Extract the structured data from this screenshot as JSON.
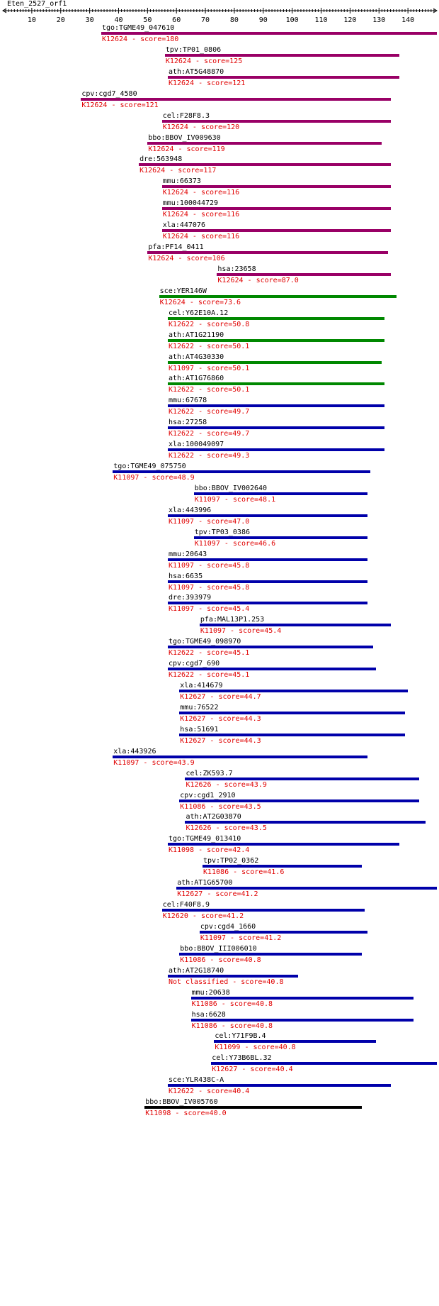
{
  "title": "Eten_2527_orf1",
  "axis": {
    "min": 0,
    "max": 150,
    "ticks": [
      10,
      20,
      30,
      40,
      50,
      60,
      70,
      80,
      90,
      100,
      110,
      120,
      130,
      140
    ]
  },
  "colors": {
    "purple": "#990066",
    "green": "#008800",
    "blue": "#0000aa",
    "black": "#000000",
    "red": "#e00000"
  },
  "hits": [
    {
      "gene": "tgo:TGME49_047610",
      "ko": "K12624",
      "score": "180",
      "start": 34,
      "end": 150,
      "color": "purple"
    },
    {
      "gene": "tpv:TP01_0806",
      "ko": "K12624",
      "score": "125",
      "start": 56,
      "end": 137,
      "color": "purple"
    },
    {
      "gene": "ath:AT5G48870",
      "ko": "K12624",
      "score": "121",
      "start": 57,
      "end": 137,
      "color": "purple"
    },
    {
      "gene": "cpv:cgd7_4580",
      "ko": "K12624",
      "score": "121",
      "start": 27,
      "end": 134,
      "color": "purple"
    },
    {
      "gene": "cel:F28F8.3",
      "ko": "K12624",
      "score": "120",
      "start": 55,
      "end": 134,
      "color": "purple"
    },
    {
      "gene": "bbo:BBOV_IV009630",
      "ko": "K12624",
      "score": "119",
      "start": 50,
      "end": 131,
      "color": "purple"
    },
    {
      "gene": "dre:563948",
      "ko": "K12624",
      "score": "117",
      "start": 47,
      "end": 134,
      "color": "purple"
    },
    {
      "gene": "mmu:66373",
      "ko": "K12624",
      "score": "116",
      "start": 55,
      "end": 134,
      "color": "purple"
    },
    {
      "gene": "mmu:100044729",
      "ko": "K12624",
      "score": "116",
      "start": 55,
      "end": 134,
      "color": "purple"
    },
    {
      "gene": "xla:447076",
      "ko": "K12624",
      "score": "116",
      "start": 55,
      "end": 134,
      "color": "purple"
    },
    {
      "gene": "pfa:PF14_0411",
      "ko": "K12624",
      "score": "106",
      "start": 50,
      "end": 133,
      "color": "purple"
    },
    {
      "gene": "hsa:23658",
      "ko": "K12624",
      "score": "87.0",
      "start": 74,
      "end": 134,
      "color": "purple"
    },
    {
      "gene": "sce:YER146W",
      "ko": "K12624",
      "score": "73.6",
      "start": 54,
      "end": 136,
      "color": "green"
    },
    {
      "gene": "cel:Y62E10A.12",
      "ko": "K12622",
      "score": "50.8",
      "start": 57,
      "end": 132,
      "color": "green"
    },
    {
      "gene": "ath:AT1G21190",
      "ko": "K12622",
      "score": "50.1",
      "start": 57,
      "end": 132,
      "color": "green"
    },
    {
      "gene": "ath:AT4G30330",
      "ko": "K11097",
      "score": "50.1",
      "start": 57,
      "end": 131,
      "color": "green"
    },
    {
      "gene": "ath:AT1G76860",
      "ko": "K12622",
      "score": "50.1",
      "start": 57,
      "end": 132,
      "color": "green"
    },
    {
      "gene": "mmu:67678",
      "ko": "K12622",
      "score": "49.7",
      "start": 57,
      "end": 132,
      "color": "blue"
    },
    {
      "gene": "hsa:27258",
      "ko": "K12622",
      "score": "49.7",
      "start": 57,
      "end": 132,
      "color": "blue"
    },
    {
      "gene": "xla:100049097",
      "ko": "K12622",
      "score": "49.3",
      "start": 57,
      "end": 132,
      "color": "blue"
    },
    {
      "gene": "tgo:TGME49_075750",
      "ko": "K11097",
      "score": "48.9",
      "start": 38,
      "end": 127,
      "color": "blue"
    },
    {
      "gene": "bbo:BBOV_IV002640",
      "ko": "K11097",
      "score": "48.1",
      "start": 66,
      "end": 126,
      "color": "blue"
    },
    {
      "gene": "xla:443996",
      "ko": "K11097",
      "score": "47.0",
      "start": 57,
      "end": 126,
      "color": "blue"
    },
    {
      "gene": "tpv:TP03_0386",
      "ko": "K11097",
      "score": "46.6",
      "start": 66,
      "end": 126,
      "color": "blue"
    },
    {
      "gene": "mmu:20643",
      "ko": "K11097",
      "score": "45.8",
      "start": 57,
      "end": 126,
      "color": "blue"
    },
    {
      "gene": "hsa:6635",
      "ko": "K11097",
      "score": "45.8",
      "start": 57,
      "end": 126,
      "color": "blue"
    },
    {
      "gene": "dre:393979",
      "ko": "K11097",
      "score": "45.4",
      "start": 57,
      "end": 126,
      "color": "blue"
    },
    {
      "gene": "pfa:MAL13P1.253",
      "ko": "K11097",
      "score": "45.4",
      "start": 68,
      "end": 134,
      "color": "blue"
    },
    {
      "gene": "tgo:TGME49_098970",
      "ko": "K12622",
      "score": "45.1",
      "start": 57,
      "end": 128,
      "color": "blue"
    },
    {
      "gene": "cpv:cgd7_690",
      "ko": "K12622",
      "score": "45.1",
      "start": 57,
      "end": 129,
      "color": "blue"
    },
    {
      "gene": "xla:414679",
      "ko": "K12627",
      "score": "44.7",
      "start": 61,
      "end": 140,
      "color": "blue"
    },
    {
      "gene": "mmu:76522",
      "ko": "K12627",
      "score": "44.3",
      "start": 61,
      "end": 139,
      "color": "blue"
    },
    {
      "gene": "hsa:51691",
      "ko": "K12627",
      "score": "44.3",
      "start": 61,
      "end": 139,
      "color": "blue"
    },
    {
      "gene": "xla:443926",
      "ko": "K11097",
      "score": "43.9",
      "start": 38,
      "end": 126,
      "color": "blue"
    },
    {
      "gene": "cel:ZK593.7",
      "ko": "K12626",
      "score": "43.9",
      "start": 63,
      "end": 144,
      "color": "blue"
    },
    {
      "gene": "cpv:cgd1_2910",
      "ko": "K11086",
      "score": "43.5",
      "start": 61,
      "end": 144,
      "color": "blue"
    },
    {
      "gene": "ath:AT2G03870",
      "ko": "K12626",
      "score": "43.5",
      "start": 63,
      "end": 146,
      "color": "blue"
    },
    {
      "gene": "tgo:TGME49_013410",
      "ko": "K11098",
      "score": "42.4",
      "start": 57,
      "end": 137,
      "color": "blue"
    },
    {
      "gene": "tpv:TP02_0362",
      "ko": "K11086",
      "score": "41.6",
      "start": 69,
      "end": 124,
      "color": "blue"
    },
    {
      "gene": "ath:AT1G65700",
      "ko": "K12627",
      "score": "41.2",
      "start": 60,
      "end": 150,
      "color": "blue"
    },
    {
      "gene": "cel:F40F8.9",
      "ko": "K12620",
      "score": "41.2",
      "start": 55,
      "end": 125,
      "color": "blue"
    },
    {
      "gene": "cpv:cgd4_1660",
      "ko": "K11097",
      "score": "41.2",
      "start": 68,
      "end": 126,
      "color": "blue"
    },
    {
      "gene": "bbo:BBOV_III006010",
      "ko": "K11086",
      "score": "40.8",
      "start": 61,
      "end": 124,
      "color": "blue"
    },
    {
      "gene": "ath:AT2G18740",
      "ko": "Not classified",
      "score": "40.8",
      "start": 57,
      "end": 102,
      "color": "blue"
    },
    {
      "gene": "mmu:20638",
      "ko": "K11086",
      "score": "40.8",
      "start": 65,
      "end": 142,
      "color": "blue"
    },
    {
      "gene": "hsa:6628",
      "ko": "K11086",
      "score": "40.8",
      "start": 65,
      "end": 142,
      "color": "blue"
    },
    {
      "gene": "cel:Y71F9B.4",
      "ko": "K11099",
      "score": "40.8",
      "start": 73,
      "end": 129,
      "color": "blue"
    },
    {
      "gene": "cel:Y73B6BL.32",
      "ko": "K12627",
      "score": "40.4",
      "start": 72,
      "end": 150,
      "color": "blue"
    },
    {
      "gene": "sce:YLR438C-A",
      "ko": "K12622",
      "score": "40.4",
      "start": 57,
      "end": 134,
      "color": "blue"
    },
    {
      "gene": "bbo:BBOV_IV005760",
      "ko": "K11098",
      "score": "40.0",
      "start": 49,
      "end": 124,
      "color": "black"
    }
  ]
}
